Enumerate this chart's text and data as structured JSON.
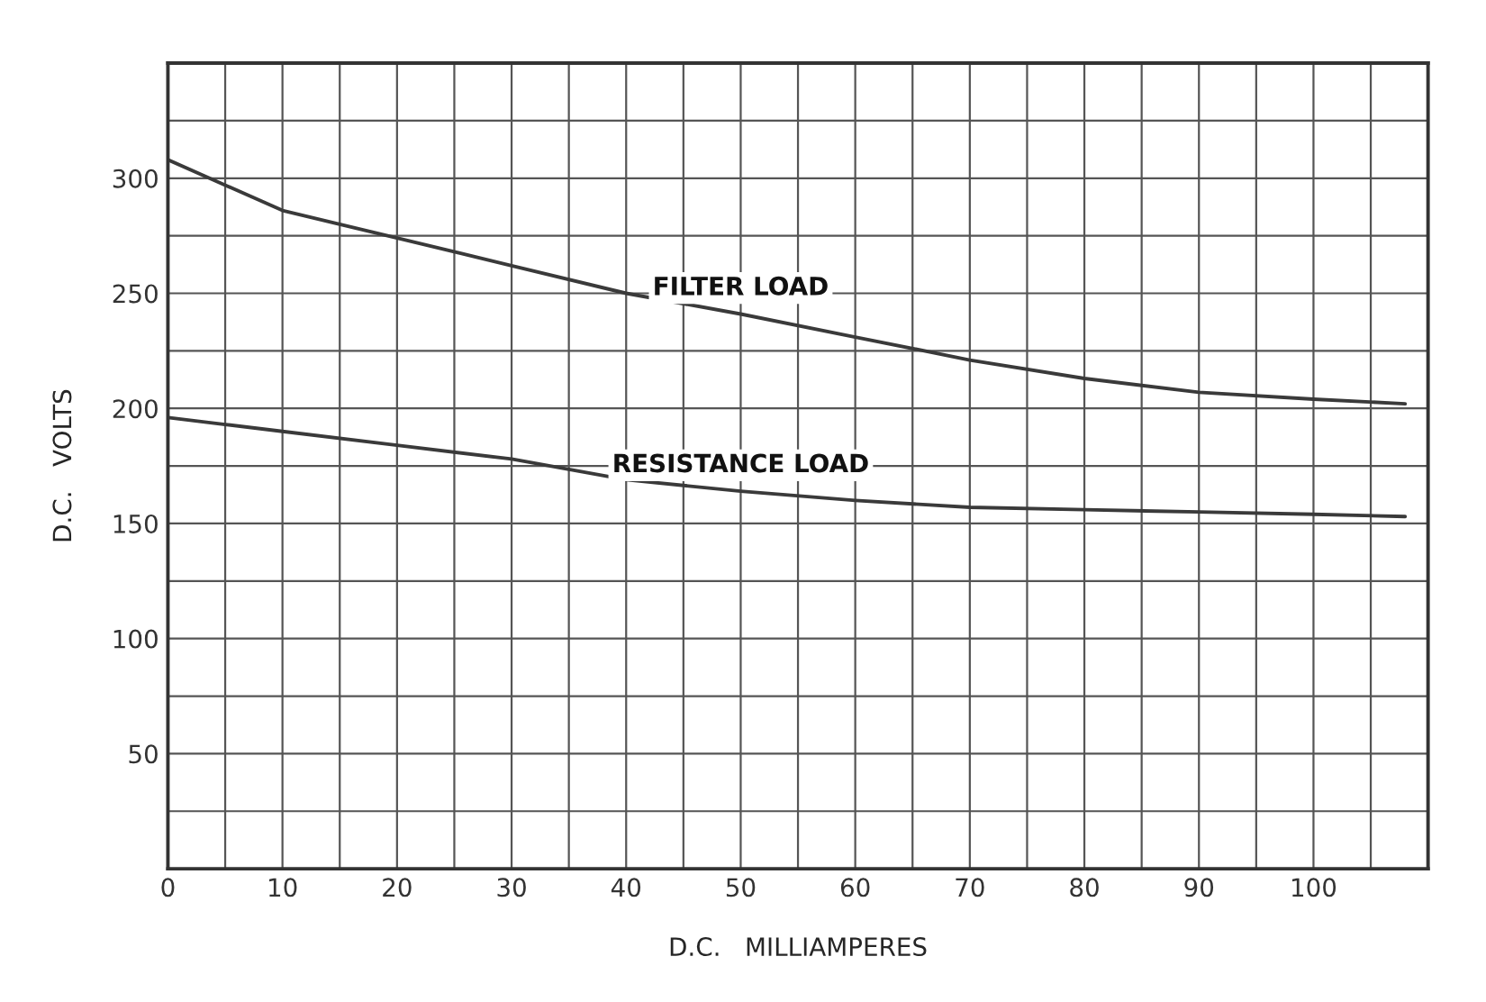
{
  "chart_data": {
    "type": "line",
    "xlabel": "D.C.   MILLIAMPERES",
    "ylabel": "D.C.   VOLTS",
    "x": [
      0,
      5,
      10,
      20,
      30,
      40,
      50,
      60,
      70,
      80,
      90,
      100,
      108
    ],
    "series": [
      {
        "name": "FILTER LOAD",
        "color": "#3a3a3a",
        "values": [
          308,
          297,
          286,
          274,
          262,
          250,
          241,
          231,
          221,
          213,
          207,
          204,
          202
        ]
      },
      {
        "name": "RESISTANCE LOAD",
        "color": "#3a3a3a",
        "values": [
          196,
          193,
          190,
          184,
          178,
          169,
          164,
          160,
          157,
          156,
          155,
          154,
          153
        ]
      }
    ],
    "xlim": [
      0,
      110
    ],
    "ylim": [
      0,
      350
    ],
    "xticks": [
      0,
      {
        "value": 5,
        "label": null
      },
      10,
      {
        "value": 15,
        "label": null
      },
      20,
      {
        "value": 25,
        "label": null
      },
      30,
      {
        "value": 35,
        "label": null
      },
      40,
      {
        "value": 45,
        "label": null
      },
      50,
      {
        "value": 55,
        "label": null
      },
      60,
      {
        "value": 65,
        "label": null
      },
      70,
      {
        "value": 75,
        "label": null
      },
      80,
      {
        "value": 85,
        "label": null
      },
      90,
      {
        "value": 95,
        "label": null
      },
      100,
      {
        "value": 105,
        "label": null
      }
    ],
    "yticks": [
      {
        "value": 0,
        "label": null
      },
      {
        "value": 25,
        "label": null
      },
      50,
      {
        "value": 75,
        "label": null
      },
      100,
      {
        "value": 125,
        "label": null
      },
      150,
      {
        "value": 175,
        "label": null
      },
      200,
      {
        "value": 225,
        "label": null
      },
      250,
      {
        "value": 275,
        "label": null
      },
      300,
      {
        "value": 325,
        "label": null
      }
    ],
    "grid": true,
    "legend": false,
    "marker": "none",
    "line_style": "solid"
  }
}
